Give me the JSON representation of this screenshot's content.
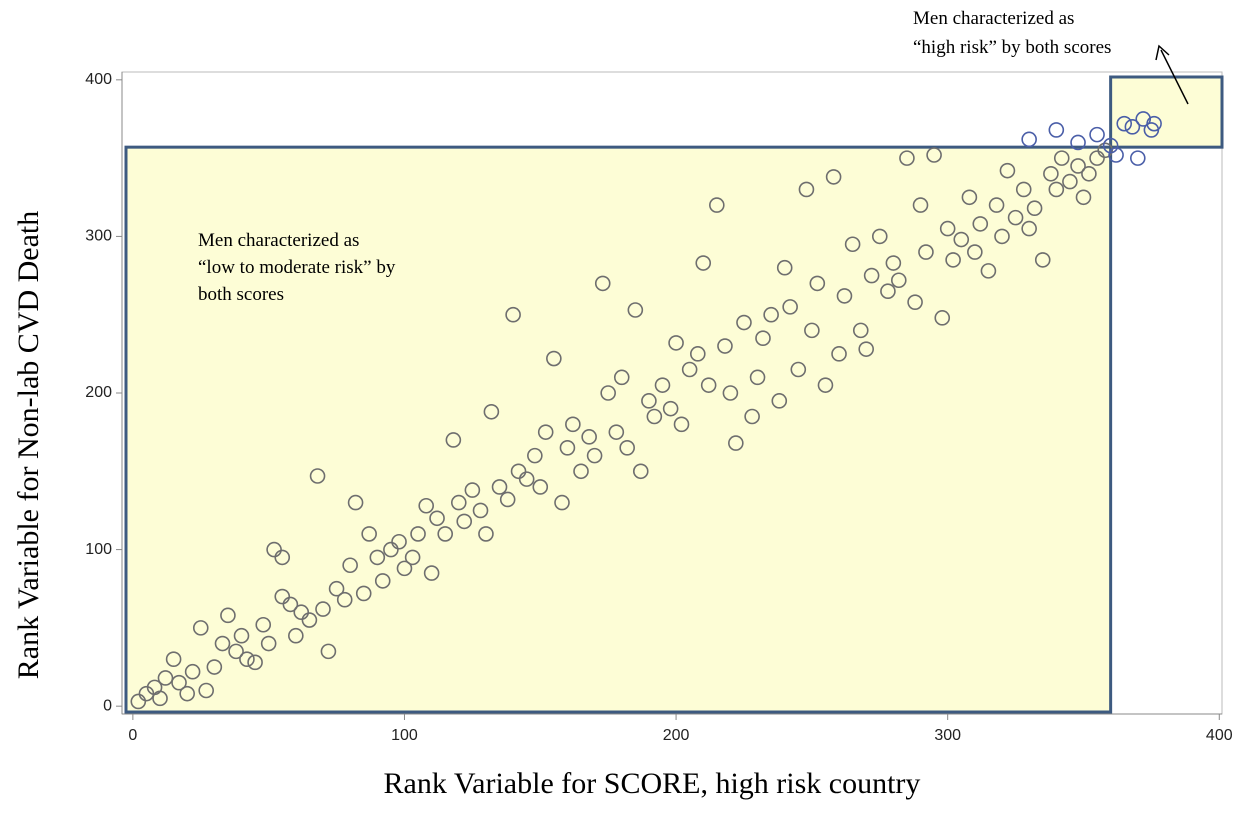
{
  "chart_data": {
    "type": "scatter",
    "x_label": "Rank Variable for SCORE, high risk country",
    "y_label": "Rank Variable for Non-lab CVD Death",
    "annotations": [
      {
        "lines": [
          "Men characterized as",
          "“low to moderate risk” by",
          "both scores"
        ]
      },
      {
        "lines": [
          "Men characterized as",
          "“high risk” by both scores"
        ]
      }
    ],
    "threshold_x": 360,
    "threshold_y": 357,
    "region_color": "#fdfdd6",
    "region_edge_color": "#3d5a80",
    "xlim": [
      -4,
      401
    ],
    "ylim": [
      -5,
      405
    ],
    "xticks": [
      0,
      100,
      200,
      300,
      400
    ],
    "yticks": [
      0,
      100,
      200,
      300,
      400
    ],
    "series": [
      {
        "color": "#6e6e6e",
        "x": [
          2,
          5,
          8,
          10,
          12,
          15,
          17,
          20,
          22,
          25,
          27,
          30,
          33,
          35,
          38,
          40,
          42,
          45,
          48,
          50,
          52,
          55,
          55,
          58,
          60,
          62,
          65,
          68,
          70,
          72,
          75,
          78,
          80,
          82,
          85,
          87,
          90,
          92,
          95,
          98,
          100,
          103,
          105,
          108,
          110,
          112,
          115,
          118,
          120,
          122,
          125,
          128,
          130,
          132,
          135,
          138,
          140,
          142,
          145,
          148,
          150,
          152,
          155,
          158,
          160,
          162,
          165,
          168,
          170,
          173,
          175,
          178,
          180,
          182,
          185,
          187,
          190,
          192,
          195,
          198,
          200,
          202,
          205,
          208,
          210,
          212,
          215,
          218,
          220,
          222,
          225,
          228,
          230,
          232,
          235,
          238,
          240,
          242,
          245,
          248,
          250,
          252,
          255,
          258,
          260,
          262,
          265,
          268,
          270,
          272,
          275,
          278,
          280,
          282,
          285,
          288,
          290,
          292,
          295,
          298,
          300,
          302,
          305,
          308,
          310,
          312,
          315,
          318,
          320,
          322,
          325,
          328,
          330,
          332,
          335,
          338,
          340,
          342,
          345,
          348,
          350,
          352,
          355,
          358
        ],
        "y": [
          3,
          8,
          12,
          5,
          18,
          30,
          15,
          8,
          22,
          50,
          10,
          25,
          40,
          58,
          35,
          45,
          30,
          28,
          52,
          40,
          100,
          95,
          70,
          65,
          45,
          60,
          55,
          147,
          62,
          35,
          75,
          68,
          90,
          130,
          72,
          110,
          95,
          80,
          100,
          105,
          88,
          95,
          110,
          128,
          85,
          120,
          110,
          170,
          130,
          118,
          138,
          125,
          110,
          188,
          140,
          132,
          250,
          150,
          145,
          160,
          140,
          175,
          222,
          130,
          165,
          180,
          150,
          172,
          160,
          270,
          200,
          175,
          210,
          165,
          253,
          150,
          195,
          185,
          205,
          190,
          232,
          180,
          215,
          225,
          283,
          205,
          320,
          230,
          200,
          168,
          245,
          185,
          210,
          235,
          250,
          195,
          280,
          255,
          215,
          330,
          240,
          270,
          205,
          338,
          225,
          262,
          295,
          240,
          228,
          275,
          300,
          265,
          283,
          272,
          350,
          258,
          320,
          290,
          352,
          248,
          305,
          285,
          298,
          325,
          290,
          308,
          278,
          320,
          300,
          342,
          312,
          330,
          305,
          318,
          285,
          340,
          330,
          350,
          335,
          345,
          325,
          340,
          350,
          355
        ]
      },
      {
        "color": "#4a5ea8",
        "x": [
          330,
          340,
          348,
          355,
          360,
          362,
          365,
          368,
          370,
          372,
          375,
          376
        ],
        "y": [
          362,
          368,
          360,
          365,
          358,
          352,
          372,
          370,
          350,
          375,
          368,
          372
        ]
      }
    ]
  }
}
